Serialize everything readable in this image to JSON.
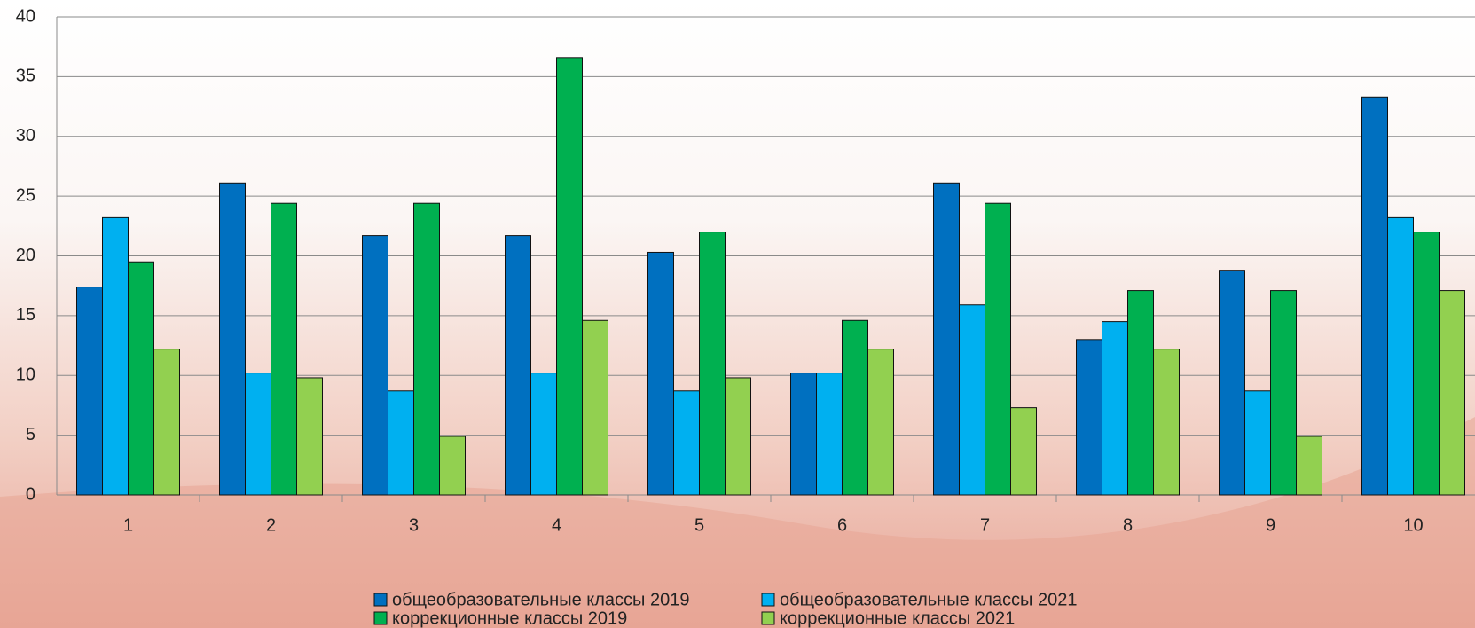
{
  "chart_data": {
    "type": "bar",
    "categories": [
      "1",
      "2",
      "3",
      "4",
      "5",
      "6",
      "7",
      "8",
      "9",
      "10"
    ],
    "series": [
      {
        "name": "общеобразовательные классы 2019",
        "color": "#0070c0",
        "values": [
          17.4,
          26.1,
          21.7,
          21.7,
          20.3,
          10.2,
          26.1,
          13.0,
          18.8,
          33.3
        ]
      },
      {
        "name": "общеобразовательные классы 2021",
        "color": "#00b0f0",
        "values": [
          23.2,
          10.2,
          8.7,
          10.2,
          8.7,
          10.2,
          15.9,
          14.5,
          8.7,
          23.2
        ]
      },
      {
        "name": "коррекционные классы 2019",
        "color": "#00b050",
        "values": [
          19.5,
          24.4,
          24.4,
          36.6,
          22.0,
          14.6,
          24.4,
          17.1,
          17.1,
          22.0
        ]
      },
      {
        "name": "коррекционные классы 2021",
        "color": "#92d050",
        "values": [
          12.2,
          9.8,
          4.9,
          14.6,
          9.8,
          12.2,
          7.3,
          12.2,
          4.9,
          17.1
        ]
      }
    ],
    "ylim": [
      0,
      40
    ],
    "yticks": [
      0,
      5,
      10,
      15,
      20,
      25,
      30,
      35,
      40
    ],
    "grid": true
  }
}
